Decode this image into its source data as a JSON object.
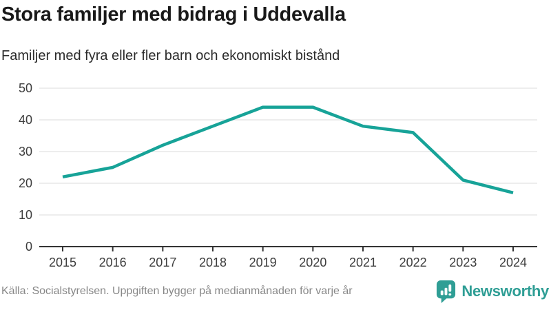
{
  "header": {
    "title": "Stora familjer med bidrag i Uddevalla",
    "subtitle": "Familjer med fyra eller fler barn och ekonomiskt bistånd"
  },
  "chart_data": {
    "type": "line",
    "title": "Stora familjer med bidrag i Uddevalla",
    "subtitle": "Familjer med fyra eller fler barn och ekonomiskt bistånd",
    "categories": [
      "2015",
      "2016",
      "2017",
      "2018",
      "2019",
      "2020",
      "2021",
      "2022",
      "2023",
      "2024"
    ],
    "series": [
      {
        "name": "Familjer med fyra eller fler barn och ekonomiskt bistånd",
        "values": [
          22,
          25,
          32,
          38,
          44,
          44,
          38,
          36,
          21,
          17
        ]
      }
    ],
    "xlabel": "",
    "ylabel": "",
    "ylim": [
      0,
      50
    ],
    "yticks": [
      0,
      10,
      20,
      30,
      40,
      50
    ],
    "grid": true,
    "legend": false
  },
  "footer": {
    "source": "Källa: Socialstyrelsen. Uppgiften bygger på medianmånaden för varje år",
    "logo_text": "Newsworthy"
  },
  "colors": {
    "accent": "#17a398",
    "logo_teal": "#2f9e95",
    "grid_line": "#e2e2e2",
    "axis_line": "#333333",
    "tick_label": "#3d3d3d",
    "title_text": "#191919",
    "muted_text": "#878787"
  }
}
